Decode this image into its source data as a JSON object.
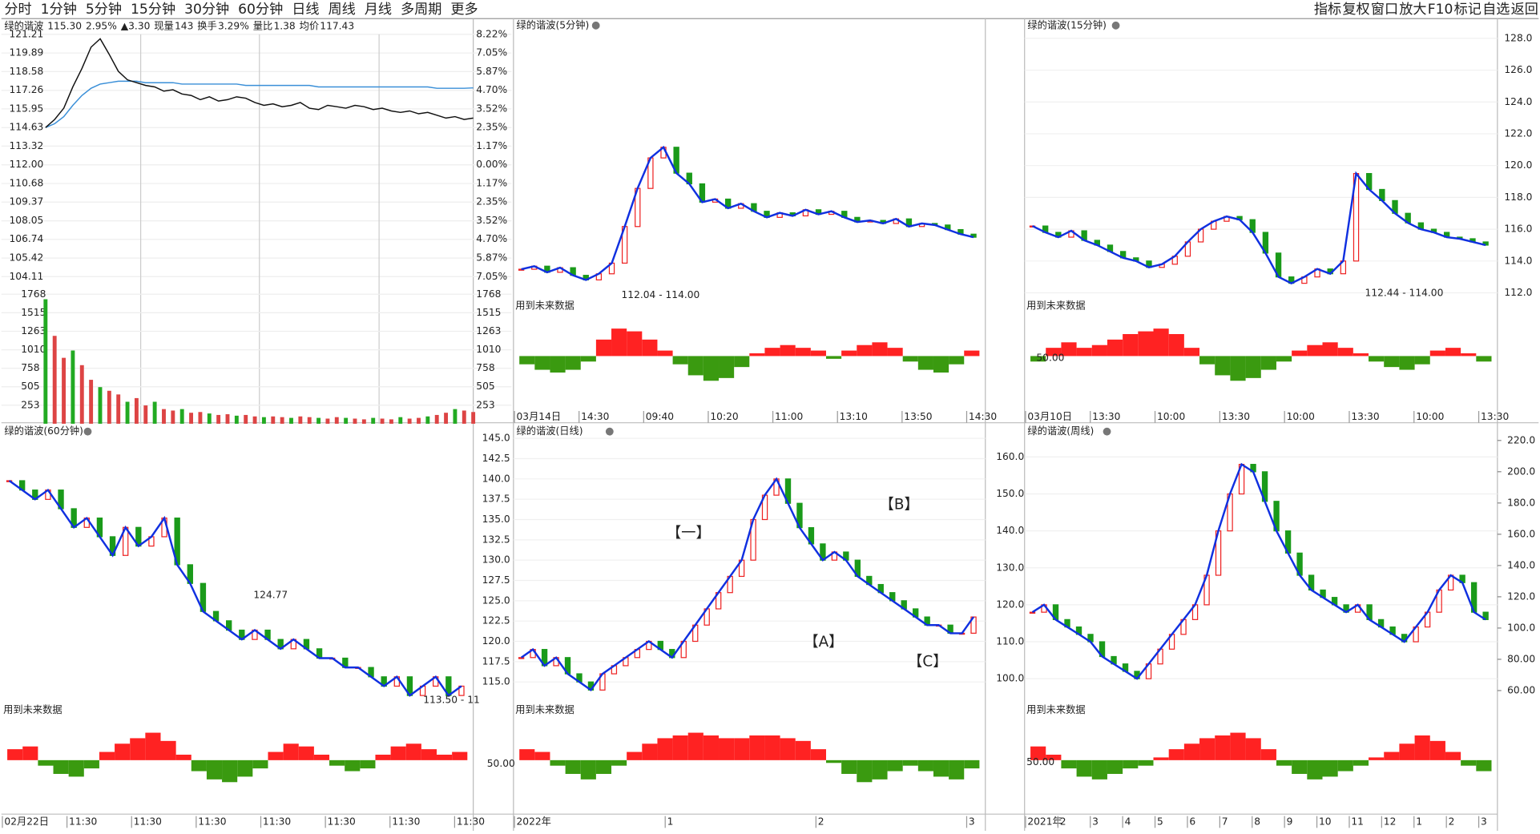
{
  "toolbar": {
    "tabs": [
      "分时",
      "1分钟",
      "5分钟",
      "15分钟",
      "30分钟",
      "60分钟",
      "日线",
      "周线",
      "月线",
      "多周期",
      "更多"
    ],
    "right": [
      "指标",
      "复权",
      "窗口",
      "放大",
      "F10",
      "标记",
      "自选",
      "返回"
    ]
  },
  "intraday": {
    "name": "绿的谐波",
    "price": "115.30",
    "change_pct": "2.95%",
    "change": "▲3.30",
    "vol_label": "现量",
    "vol": "143",
    "turnover_label": "换手",
    "turnover": "3.29%",
    "ratio_label": "量比",
    "ratio": "1.38",
    "avg_label": "均价",
    "avg": "117.43",
    "ylim": [
      104.11,
      121.21
    ],
    "yticks": [
      {
        "value": 121.21,
        "label": "121.21"
      },
      {
        "value": 119.89,
        "label": "119.89"
      },
      {
        "value": 118.58,
        "label": "118.58"
      },
      {
        "value": 117.26,
        "label": "117.26"
      },
      {
        "value": 115.95,
        "label": "115.95"
      },
      {
        "value": 114.63,
        "label": "114.63"
      },
      {
        "value": 113.32,
        "label": "113.32"
      },
      {
        "value": 112,
        "label": "112.00"
      },
      {
        "value": 110.68,
        "label": "110.68"
      },
      {
        "value": 109.37,
        "label": "109.37"
      },
      {
        "value": 108.05,
        "label": "108.05"
      },
      {
        "value": 106.74,
        "label": "106.74"
      },
      {
        "value": 105.42,
        "label": "105.42"
      },
      {
        "value": 104.11,
        "label": "104.11"
      }
    ],
    "pct_labels": [
      "8.22%",
      "7.05%",
      "5.87%",
      "4.70%",
      "3.52%",
      "2.35%",
      "1.17%",
      "0.00%",
      "1.17%",
      "2.35%",
      "3.52%",
      "4.70%",
      "5.87%",
      "7.05%"
    ],
    "prices": [
      114.63,
      115.2,
      116.0,
      117.5,
      118.8,
      120.3,
      120.9,
      119.8,
      118.6,
      118.0,
      117.8,
      117.6,
      117.5,
      117.2,
      117.3,
      117.0,
      116.9,
      116.6,
      116.8,
      116.5,
      116.6,
      116.8,
      116.7,
      116.4,
      116.2,
      116.3,
      116.1,
      116.2,
      116.4,
      116.0,
      115.9,
      116.2,
      116.1,
      116.0,
      116.2,
      116.1,
      115.9,
      116.0,
      115.8,
      115.7,
      115.8,
      115.6,
      115.7,
      115.5,
      115.3,
      115.4,
      115.2,
      115.3
    ],
    "avg_prices": [
      114.63,
      114.9,
      115.4,
      116.2,
      116.9,
      117.4,
      117.7,
      117.8,
      117.9,
      117.9,
      117.9,
      117.8,
      117.8,
      117.8,
      117.8,
      117.7,
      117.7,
      117.7,
      117.7,
      117.7,
      117.7,
      117.7,
      117.6,
      117.6,
      117.6,
      117.6,
      117.6,
      117.6,
      117.6,
      117.6,
      117.5,
      117.5,
      117.5,
      117.5,
      117.5,
      117.5,
      117.5,
      117.5,
      117.5,
      117.5,
      117.5,
      117.5,
      117.5,
      117.4,
      117.4,
      117.4,
      117.4,
      117.43
    ],
    "vol_ylim": [
      0,
      1768
    ],
    "vol_ticks": [
      1768,
      1515,
      1263,
      1010,
      758,
      505,
      253
    ],
    "volumes": [
      1700,
      1200,
      900,
      1000,
      800,
      600,
      500,
      450,
      400,
      300,
      350,
      250,
      300,
      200,
      180,
      200,
      150,
      160,
      140,
      120,
      130,
      110,
      120,
      100,
      90,
      100,
      90,
      80,
      100,
      90,
      80,
      70,
      90,
      80,
      70,
      60,
      80,
      70,
      60,
      90,
      70,
      80,
      100,
      120,
      150,
      200,
      180,
      160
    ]
  },
  "panels": [
    {
      "title": "绿的谐波(5分钟)",
      "note": "用到未来数据",
      "xlabels": [
        "03月14日",
        "14:30",
        "09:40",
        "10:20",
        "11:00",
        "13:10",
        "13:50",
        "14:30"
      ],
      "annotations": [
        "112.04 - 114.00"
      ],
      "ylim": [
        110.4,
        129.7
      ],
      "values": [
        113.2,
        113.4,
        113.0,
        113.3,
        112.8,
        112.5,
        112.9,
        113.6,
        116.0,
        118.5,
        120.5,
        121.2,
        119.5,
        118.8,
        117.6,
        117.8,
        117.2,
        117.5,
        117.0,
        116.6,
        116.9,
        116.7,
        117.1,
        116.8,
        117.0,
        116.6,
        116.3,
        116.4,
        116.2,
        116.5,
        116.0,
        116.2,
        116.1,
        115.8,
        115.5,
        115.3
      ],
      "indicator": [
        -0.3,
        -0.5,
        -0.6,
        -0.5,
        -0.2,
        0.6,
        1.0,
        0.9,
        0.6,
        0.2,
        -0.3,
        -0.7,
        -0.9,
        -0.8,
        -0.4,
        0.1,
        0.3,
        0.4,
        0.3,
        0.2,
        -0.1,
        0.2,
        0.4,
        0.5,
        0.3,
        -0.2,
        -0.5,
        -0.6,
        -0.3,
        0.2
      ]
    },
    {
      "title": "绿的谐波(15分钟)",
      "note": "用到未来数据",
      "xlabels": [
        "03月10日",
        "13:30",
        "10:00",
        "13:30",
        "10:00",
        "13:30",
        "10:00",
        "13:30"
      ],
      "annotations": [
        "112.44 - 114.00"
      ],
      "lower_label": "50.00",
      "ylim": [
        110.8,
        129.3
      ],
      "yticks": [
        {
          "value": 112,
          "label": "112.0"
        },
        {
          "value": 114,
          "label": "114.0"
        },
        {
          "value": 116,
          "label": "116.0"
        },
        {
          "value": 118,
          "label": "118.0"
        },
        {
          "value": 120,
          "label": "120.0"
        },
        {
          "value": 122,
          "label": "122.0"
        },
        {
          "value": 124,
          "label": "124.0"
        },
        {
          "value": 126,
          "label": "126.0"
        },
        {
          "value": 128,
          "label": "128.0"
        }
      ],
      "values": [
        116.2,
        115.8,
        115.5,
        115.9,
        115.3,
        115.0,
        114.6,
        114.2,
        114.0,
        113.6,
        113.8,
        114.3,
        115.2,
        116.0,
        116.5,
        116.8,
        116.6,
        115.8,
        114.5,
        113.0,
        112.6,
        113.0,
        113.5,
        113.2,
        114.0,
        119.5,
        118.5,
        117.8,
        117.0,
        116.4,
        116.0,
        115.8,
        115.5,
        115.4,
        115.2,
        115.0
      ],
      "indicator": [
        -0.2,
        0.3,
        0.5,
        0.3,
        0.4,
        0.6,
        0.8,
        0.9,
        1.0,
        0.8,
        0.3,
        -0.3,
        -0.7,
        -0.9,
        -0.8,
        -0.5,
        -0.2,
        0.2,
        0.4,
        0.5,
        0.3,
        0.1,
        -0.2,
        -0.4,
        -0.5,
        -0.3,
        0.2,
        0.3,
        0.1,
        -0.2
      ]
    },
    {
      "title": "绿的谐波(60分钟)",
      "note": "用到未来数据",
      "xlabels": [
        "02月22日",
        "11:30",
        "11:30",
        "11:30",
        "11:30",
        "11:30",
        "11:30",
        "11:30"
      ],
      "annotations": [
        "124.77",
        "113.50 - 11"
      ],
      "ylim": [
        111.8,
        143.1
      ],
      "values": [
        137,
        136,
        135,
        136,
        134,
        132,
        133,
        131,
        129,
        132,
        130,
        131,
        133,
        128,
        126,
        123,
        122,
        121,
        120,
        121,
        120,
        119,
        120,
        119,
        118,
        118,
        117,
        117,
        116,
        115,
        116,
        114,
        115,
        116,
        114,
        115
      ],
      "indicator": [
        0.4,
        0.5,
        -0.2,
        -0.5,
        -0.6,
        -0.3,
        0.3,
        0.6,
        0.8,
        1.0,
        0.7,
        0.2,
        -0.4,
        -0.7,
        -0.8,
        -0.6,
        -0.3,
        0.3,
        0.6,
        0.5,
        0.2,
        -0.2,
        -0.4,
        -0.3,
        0.2,
        0.5,
        0.6,
        0.4,
        0.2,
        0.3
      ]
    },
    {
      "title": "绿的谐波(日线)",
      "note": "用到未来数据",
      "xlabels": [
        "2022年",
        "1",
        "2",
        "3"
      ],
      "annotations": [
        "【一】",
        "【B】",
        "【A】",
        "【C】"
      ],
      "lower_label": "50.00",
      "ylim": [
        110.8,
        146.8
      ],
      "yticks": [
        {
          "value": 115,
          "label": "115.0"
        },
        {
          "value": 117.5,
          "label": "117.5"
        },
        {
          "value": 120,
          "label": "120.0"
        },
        {
          "value": 122.5,
          "label": "122.5"
        },
        {
          "value": 125,
          "label": "125.0"
        },
        {
          "value": 127.5,
          "label": "127.5"
        },
        {
          "value": 130,
          "label": "130.0"
        },
        {
          "value": 132.5,
          "label": "132.5"
        },
        {
          "value": 135,
          "label": "135.0"
        },
        {
          "value": 137.5,
          "label": "137.5"
        },
        {
          "value": 140,
          "label": "140.0"
        },
        {
          "value": 142.5,
          "label": "142.5"
        },
        {
          "value": 145,
          "label": "145.0"
        }
      ],
      "values": [
        118,
        119,
        117,
        118,
        116,
        115,
        114,
        116,
        117,
        118,
        119,
        120,
        119,
        118,
        120,
        122,
        124,
        126,
        128,
        130,
        135,
        138,
        140,
        137,
        134,
        132,
        130,
        131,
        130,
        128,
        127,
        126,
        125,
        124,
        123,
        122,
        122,
        121,
        121,
        123
      ],
      "indicator": [
        0.4,
        0.3,
        -0.2,
        -0.5,
        -0.7,
        -0.5,
        -0.2,
        0.3,
        0.6,
        0.8,
        0.9,
        1.0,
        0.9,
        0.8,
        0.8,
        0.9,
        0.9,
        0.8,
        0.7,
        0.4,
        -0.1,
        -0.5,
        -0.8,
        -0.7,
        -0.4,
        -0.2,
        -0.4,
        -0.6,
        -0.7,
        -0.3
      ]
    },
    {
      "title": "绿的谐波(周线)",
      "note": "用到未来数据",
      "xlabels": [
        "2021年",
        "2",
        "3",
        "4",
        "5",
        "6",
        "7",
        "8",
        "9",
        "10",
        "11",
        "12",
        "1",
        "2",
        "3"
      ],
      "annotations": [],
      "lower_label": "50.00",
      "ylim": [
        89.9,
        169
      ],
      "yticks": [
        {
          "value": 100,
          "label": "100.0"
        },
        {
          "value": 110,
          "label": "110.0"
        },
        {
          "value": 120,
          "label": "120.0"
        },
        {
          "value": 130,
          "label": "130.0"
        },
        {
          "value": 140,
          "label": "140.0"
        },
        {
          "value": 150,
          "label": "150.0"
        },
        {
          "value": 160,
          "label": "160.0"
        }
      ],
      "y2lim": [
        43.7,
        230.7
      ],
      "y2ticks": [
        {
          "value": 60,
          "label": "60.00"
        },
        {
          "value": 80,
          "label": "80.00"
        },
        {
          "value": 100,
          "label": "100.0"
        },
        {
          "value": 120,
          "label": "120.0"
        },
        {
          "value": 140,
          "label": "140.0"
        },
        {
          "value": 160,
          "label": "160.0"
        },
        {
          "value": 180,
          "label": "180.0"
        },
        {
          "value": 200,
          "label": "200.0"
        },
        {
          "value": 220,
          "label": "220.0"
        }
      ],
      "values": [
        118,
        120,
        116,
        114,
        112,
        110,
        106,
        104,
        102,
        100,
        104,
        108,
        112,
        116,
        120,
        128,
        140,
        150,
        158,
        156,
        148,
        140,
        134,
        128,
        124,
        122,
        120,
        118,
        120,
        116,
        114,
        112,
        110,
        114,
        118,
        124,
        128,
        126,
        118,
        116
      ],
      "indicator": [
        0.5,
        0.2,
        -0.3,
        -0.6,
        -0.7,
        -0.5,
        -0.3,
        -0.2,
        0.1,
        0.4,
        0.6,
        0.8,
        0.9,
        1.0,
        0.8,
        0.4,
        -0.2,
        -0.5,
        -0.7,
        -0.6,
        -0.4,
        -0.2,
        0.1,
        0.3,
        0.6,
        0.9,
        0.7,
        0.3,
        -0.2,
        -0.4
      ]
    }
  ]
}
